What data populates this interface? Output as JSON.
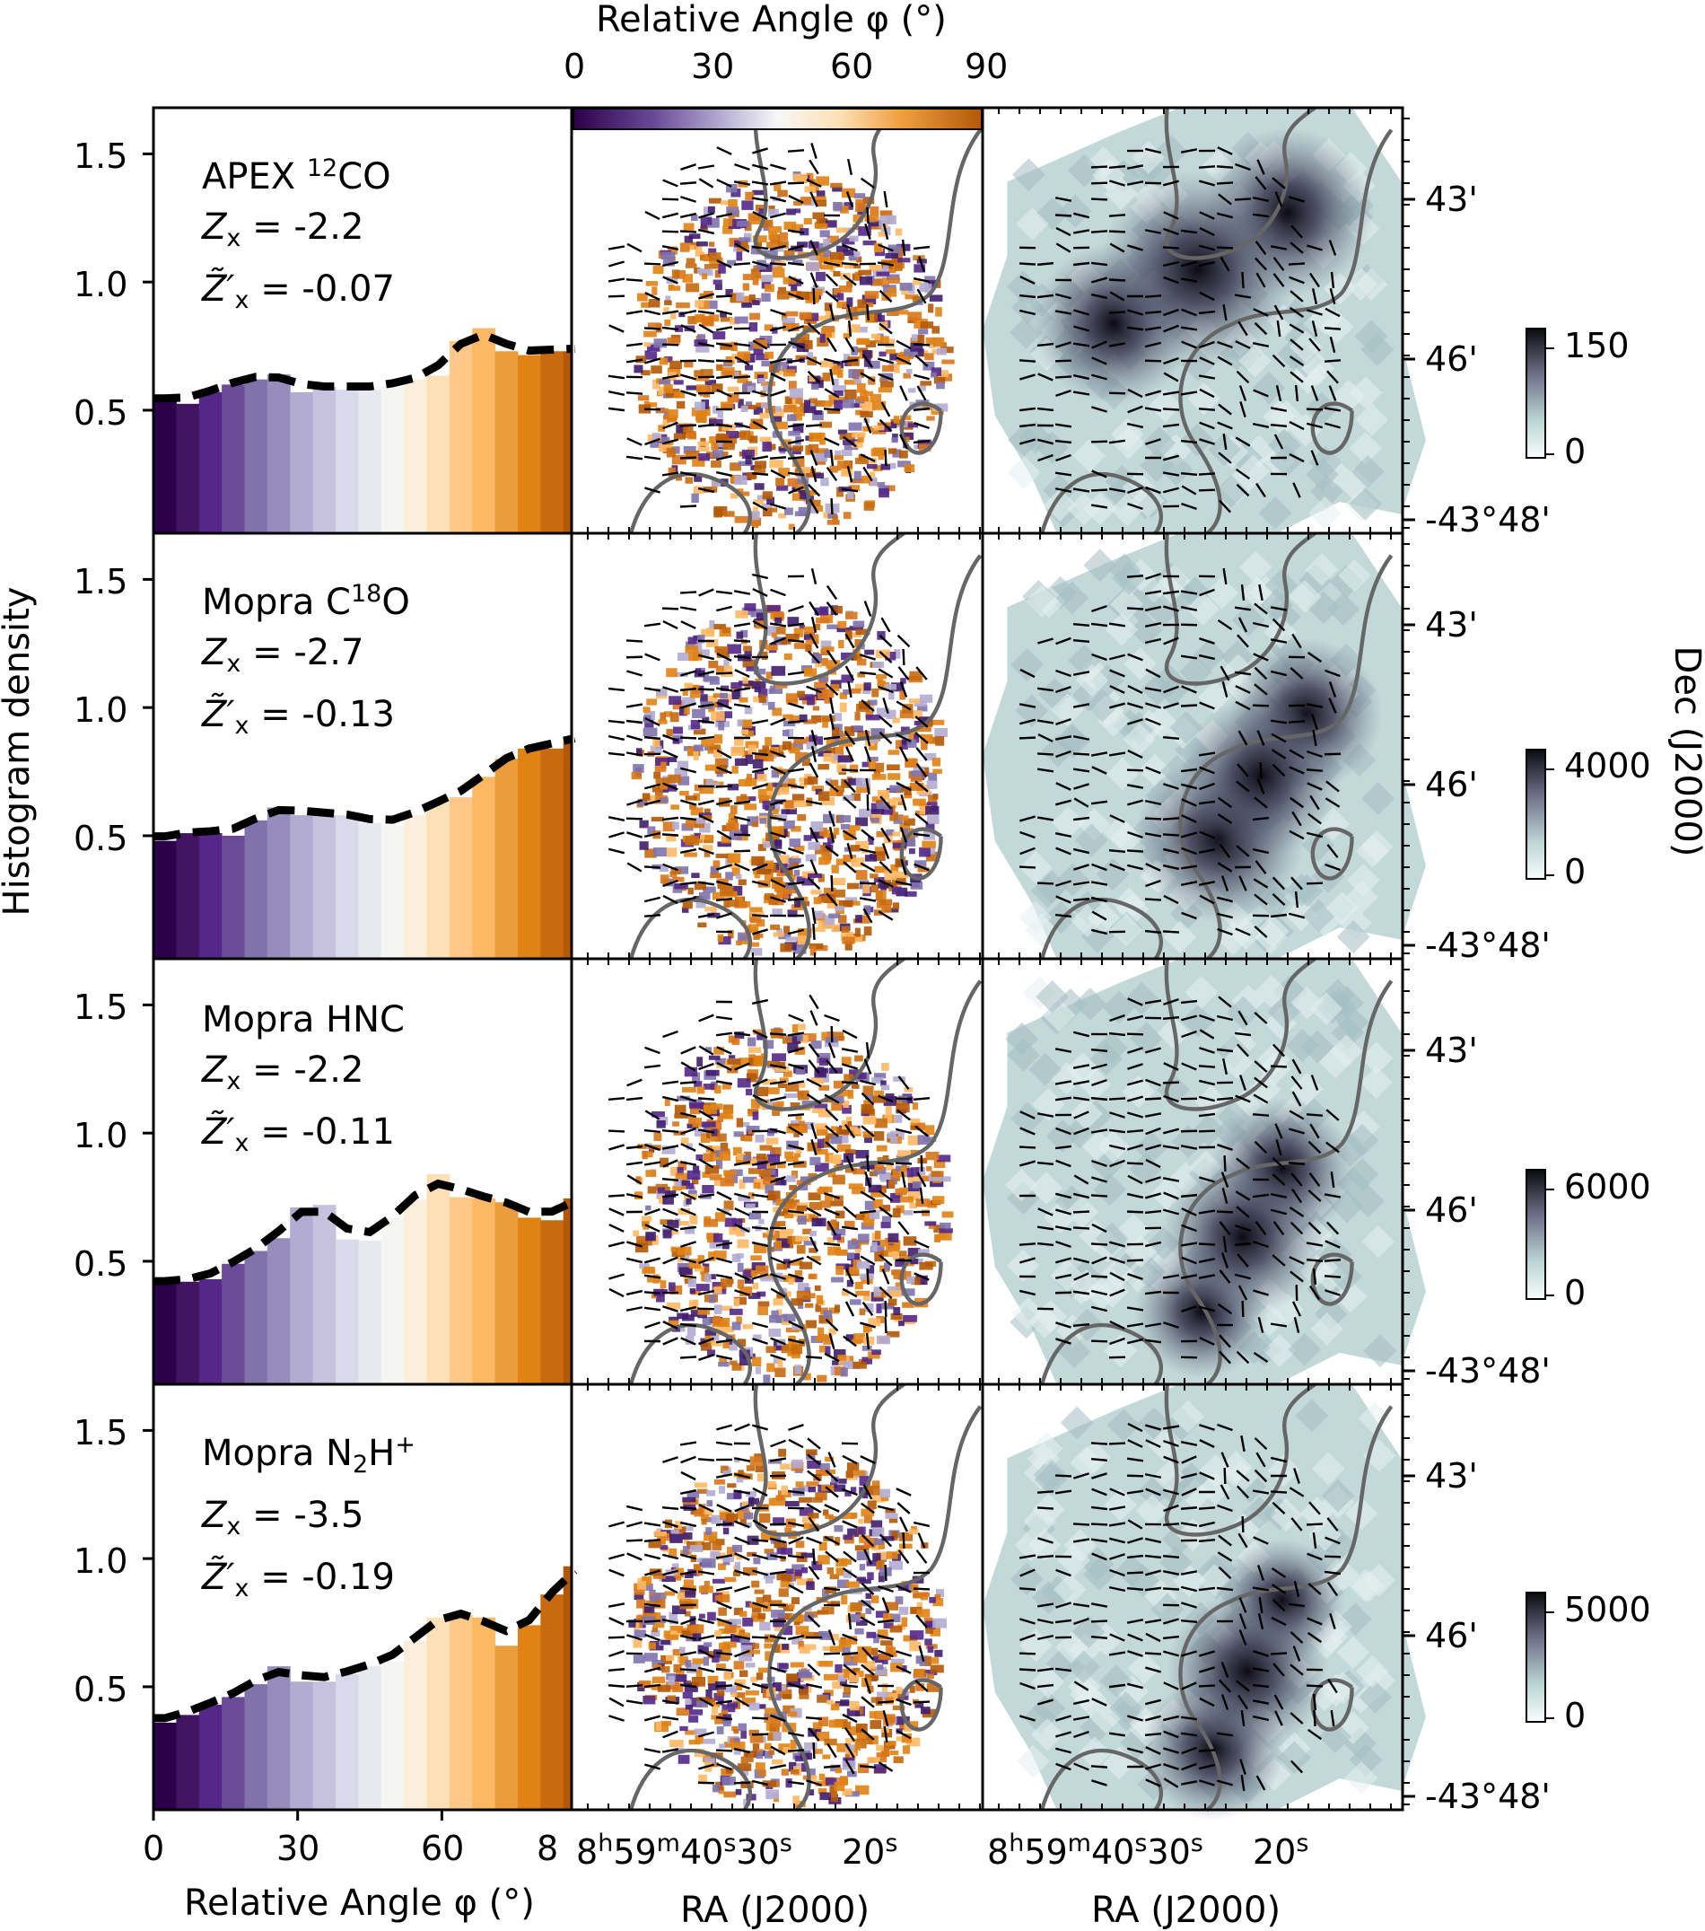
{
  "figure": {
    "hist_ylabel": "Histogram density",
    "hist_xlabel": "Relative Angle φ (°)",
    "colorbar_title": "Relative Angle φ (°)",
    "colorbar_ticks": [
      "0",
      "30",
      "60",
      "90"
    ],
    "ra_label": "RA (J2000)",
    "dec_label": "Dec (J2000)",
    "ra_ticks": [
      "8h59m40s",
      "30s",
      "20s"
    ],
    "ra_tick_parts": {
      "h": "8",
      "h_unit": "h",
      "m": "59",
      "m_unit": "m",
      "s": "40",
      "s_unit": "s",
      "s2": "30",
      "s3": "20"
    },
    "dec_ticks": [
      "43'",
      "46'",
      "-43°48'"
    ],
    "hist_xticks": [
      "0",
      "30",
      "60",
      "8"
    ],
    "hist_yticks": [
      "0.5",
      "1.0",
      "1.5"
    ],
    "colors": {
      "contour": "#666666",
      "map_low": "#f4fafa",
      "map_mid": "#a9c4c6",
      "map_high": "#0c0a14"
    }
  },
  "panels": [
    {
      "tracer_pre": "APEX ",
      "tracer_sup": "",
      "tracer_mid": "12",
      "tracer_post": "CO",
      "tracer_sub": "",
      "tracer_end": "",
      "z_sym": "Z",
      "z_sub": "x",
      "z_value": "= -2.2",
      "zp_sym": "Z̃′",
      "zp_sub": "x",
      "zp_value": "= -0.07",
      "colorbar": {
        "max": "150",
        "min": "0"
      }
    },
    {
      "tracer_pre": "Mopra C",
      "tracer_mid": "18",
      "tracer_post": "O",
      "z_sym": "Z",
      "z_sub": "x",
      "z_value": "= -2.7",
      "zp_sym": "Z̃′",
      "zp_sub": "x",
      "zp_value": "= -0.13",
      "colorbar": {
        "max": "4000",
        "min": "0"
      }
    },
    {
      "tracer_pre": "Mopra HNC",
      "tracer_mid": "",
      "tracer_post": "",
      "z_sym": "Z",
      "z_sub": "x",
      "z_value": "= -2.2",
      "zp_sym": "Z̃′",
      "zp_sub": "x",
      "zp_value": "= -0.11",
      "colorbar": {
        "max": "6000",
        "min": "0"
      }
    },
    {
      "tracer_pre": "Mopra N",
      "tracer_sub": "2",
      "tracer_after_sub": "H",
      "tracer_mid": "+",
      "tracer_post": "",
      "z_sym": "Z",
      "z_sub": "x",
      "z_value": "= -3.5",
      "zp_sym": "Z̃′",
      "zp_sub": "x",
      "zp_value": "= -0.19",
      "colorbar": {
        "max": "5000",
        "min": "0"
      }
    }
  ],
  "chart_data": [
    {
      "type": "bar",
      "title": "APEX 12CO",
      "xlabel": "Relative Angle φ (°)",
      "ylabel": "Histogram density",
      "bin_width": 4.737,
      "xlim": [
        0,
        87
      ],
      "ylim": [
        0.02,
        1.68
      ],
      "grid": false,
      "values": [
        0.54,
        0.525,
        0.57,
        0.6,
        0.62,
        0.64,
        0.57,
        0.59,
        0.58,
        0.58,
        0.59,
        0.62,
        0.635,
        0.77,
        0.82,
        0.73,
        0.715,
        0.73,
        0.73
      ]
    },
    {
      "type": "bar",
      "title": "Mopra C18O",
      "xlabel": "Relative Angle φ (°)",
      "ylabel": "Histogram density",
      "bin_width": 4.737,
      "xlim": [
        0,
        87
      ],
      "ylim": [
        0.02,
        1.68
      ],
      "grid": false,
      "values": [
        0.48,
        0.51,
        0.51,
        0.5,
        0.56,
        0.61,
        0.58,
        0.58,
        0.58,
        0.55,
        0.54,
        0.58,
        0.63,
        0.65,
        0.73,
        0.8,
        0.84,
        0.84,
        0.88
      ]
    },
    {
      "type": "bar",
      "title": "Mopra HNC",
      "xlabel": "Relative Angle φ (°)",
      "ylabel": "Histogram density",
      "bin_width": 4.737,
      "xlim": [
        0,
        87
      ],
      "ylim": [
        0.02,
        1.68
      ],
      "grid": false,
      "values": [
        0.41,
        0.42,
        0.43,
        0.49,
        0.54,
        0.59,
        0.71,
        0.72,
        0.585,
        0.58,
        0.67,
        0.74,
        0.84,
        0.75,
        0.745,
        0.73,
        0.67,
        0.66,
        0.745
      ]
    },
    {
      "type": "bar",
      "title": "Mopra N2H+",
      "xlabel": "Relative Angle φ (°)",
      "ylabel": "Histogram density",
      "bin_width": 4.737,
      "xlim": [
        0,
        87
      ],
      "ylim": [
        0.02,
        1.68
      ],
      "grid": false,
      "values": [
        0.36,
        0.39,
        0.43,
        0.46,
        0.51,
        0.58,
        0.52,
        0.52,
        0.55,
        0.58,
        0.6,
        0.68,
        0.77,
        0.78,
        0.77,
        0.66,
        0.74,
        0.86,
        0.97
      ]
    }
  ],
  "bar_colors": [
    "#2d004b",
    "#421462",
    "#542788",
    "#6a4b98",
    "#8073ac",
    "#978dbc",
    "#b2abd2",
    "#c6c2de",
    "#d8daeb",
    "#e8e8f1",
    "#f5f5f4",
    "#fbeeda",
    "#fee0b6",
    "#fdc88a",
    "#fdb863",
    "#eb9c3c",
    "#e08214",
    "#c76a10",
    "#b35806"
  ]
}
